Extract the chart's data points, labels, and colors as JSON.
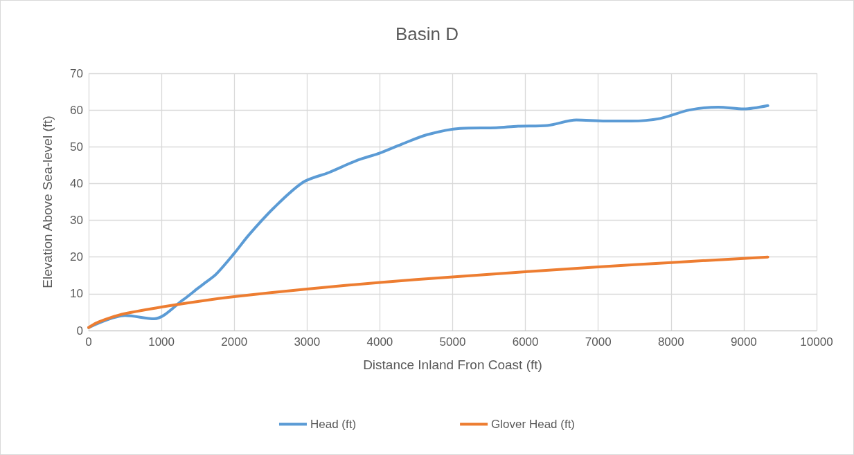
{
  "chart_data": {
    "type": "line",
    "title": "Basin D",
    "xlabel": "Distance Inland Fron Coast (ft)",
    "ylabel": "Elevation Above Sea-level (ft)",
    "xlim": [
      0,
      10000
    ],
    "xticks": [
      0,
      1000,
      2000,
      3000,
      4000,
      5000,
      6000,
      7000,
      8000,
      9000,
      10000
    ],
    "ylim": [
      0,
      70
    ],
    "yticks": [
      0,
      10,
      20,
      30,
      40,
      50,
      60,
      70
    ],
    "grid": true,
    "legend": "bottom",
    "marker": "none",
    "line_style": "solid",
    "series": [
      {
        "name": "Head (ft)",
        "color": "#5b9bd5",
        "x": [
          0,
          500,
          900,
          1300,
          1500,
          1600,
          1750,
          2000,
          2200,
          2550,
          2950,
          3300,
          3700,
          4000,
          4300,
          4650,
          5100,
          5600,
          5900,
          6300,
          6700,
          7100,
          7450,
          7850,
          8250,
          8650,
          9000,
          9330
        ],
        "values": [
          0.8,
          4.1,
          3.2,
          8.4,
          11.5,
          13,
          15.3,
          21,
          26,
          33.5,
          40.4,
          43,
          46.4,
          48.3,
          50.7,
          53.3,
          55,
          55.2,
          55.6,
          55.8,
          57.3,
          57,
          57,
          57.7,
          60,
          60.8,
          60.3,
          61.2
        ]
      },
      {
        "name": "Glover Head (ft)",
        "color": "#ed7d31",
        "x": [
          0,
          100,
          300,
          500,
          1000,
          1500,
          2000,
          3000,
          4000,
          5000,
          6000,
          7000,
          8000,
          9330
        ],
        "values": [
          0.8,
          2,
          3.5,
          4.6,
          6.4,
          7.9,
          9.2,
          11.3,
          13.1,
          14.6,
          16,
          17.3,
          18.5,
          20
        ]
      }
    ]
  }
}
